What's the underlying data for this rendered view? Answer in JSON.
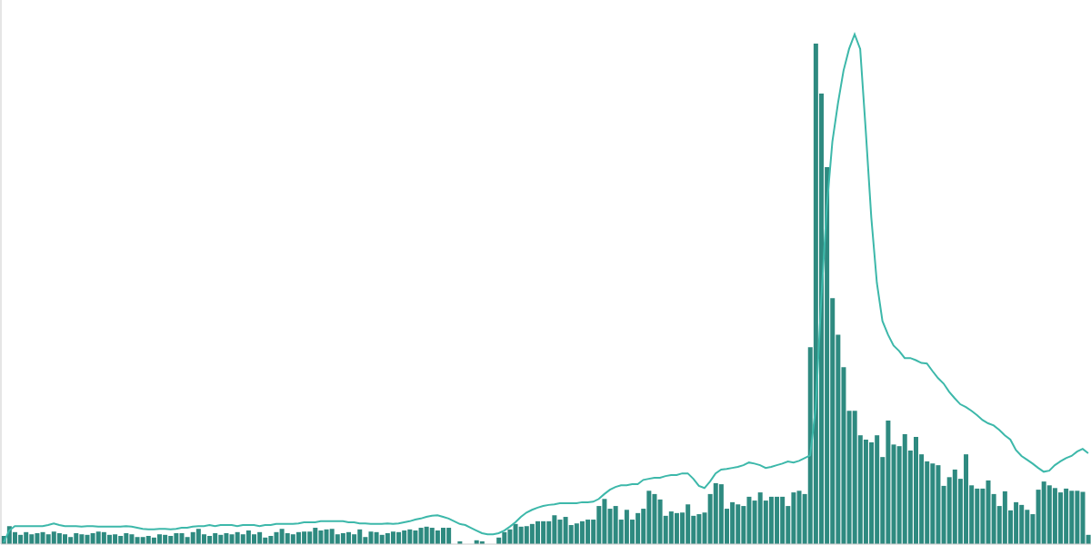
{
  "chart_data": {
    "type": "bar",
    "categories": [
      null,
      null,
      null,
      null,
      null,
      null,
      null,
      null,
      null,
      null,
      null,
      null,
      null,
      null,
      null,
      null,
      null,
      null,
      null,
      null,
      null,
      null,
      null,
      null,
      null,
      null,
      null,
      null,
      null,
      null,
      null,
      null,
      null,
      null,
      null,
      null,
      null,
      null,
      null,
      null,
      null,
      null,
      null,
      null,
      null,
      null,
      null,
      null,
      null,
      null,
      null,
      null,
      null,
      null,
      null,
      null,
      null,
      null,
      null,
      null,
      null,
      null,
      null,
      null,
      null,
      null,
      null,
      null,
      null,
      null,
      null,
      null,
      null,
      null,
      null,
      null,
      null,
      null,
      null,
      null,
      null,
      null,
      null,
      null,
      null,
      null,
      null,
      null,
      null,
      null,
      null,
      null,
      null,
      null,
      null,
      null,
      null,
      null,
      null,
      null,
      null,
      null,
      null,
      null,
      null,
      null,
      null,
      null,
      null,
      null,
      null,
      null,
      null,
      null,
      null,
      null,
      null,
      null,
      null,
      null,
      null,
      null,
      null,
      null,
      null,
      null,
      null,
      null,
      null,
      null,
      null,
      null,
      null,
      null,
      null,
      null,
      null,
      null,
      null,
      null,
      null,
      null,
      null,
      null,
      null,
      null,
      null,
      null,
      null,
      null,
      null,
      null,
      null,
      null,
      null,
      null,
      null,
      null,
      null,
      null,
      null,
      null,
      null,
      null,
      null,
      null,
      null,
      null,
      null,
      null,
      null,
      null,
      null,
      null,
      null,
      null,
      null,
      null,
      null,
      null,
      null,
      null,
      null,
      null,
      null,
      null,
      null,
      null,
      null,
      null,
      null,
      null,
      null,
      null,
      null,
      null
    ],
    "series": [
      {
        "type": "bar",
        "color": "#2e8a80",
        "values": [
          1.5,
          3.3,
          2.2,
          1.7,
          2.2,
          1.8,
          2.0,
          2.2,
          1.8,
          2.3,
          2.0,
          1.8,
          1.3,
          2.0,
          1.8,
          1.7,
          2.0,
          2.3,
          2.2,
          1.7,
          1.8,
          1.5,
          2.0,
          1.8,
          1.3,
          1.3,
          1.5,
          1.2,
          1.8,
          1.7,
          1.5,
          2.0,
          2.0,
          1.3,
          2.2,
          2.8,
          1.8,
          1.5,
          2.0,
          1.7,
          2.0,
          1.8,
          2.2,
          1.8,
          2.5,
          1.8,
          2.2,
          1.2,
          1.5,
          2.2,
          2.8,
          2.0,
          1.8,
          2.2,
          2.3,
          2.3,
          3.0,
          2.5,
          2.7,
          2.8,
          1.8,
          2.0,
          2.2,
          1.8,
          2.7,
          1.3,
          2.3,
          2.2,
          1.7,
          2.0,
          2.3,
          2.2,
          2.5,
          2.7,
          2.5,
          3.0,
          3.2,
          3.0,
          2.5,
          3.0,
          3.0,
          0,
          0.5,
          0,
          0,
          0.7,
          0.5,
          0,
          0,
          1.2,
          2.2,
          2.7,
          3.7,
          3.2,
          3.3,
          3.7,
          4.2,
          4.2,
          4.2,
          5.3,
          4.5,
          5.0,
          3.5,
          3.8,
          4.2,
          4.5,
          4.5,
          7.0,
          8.3,
          6.5,
          7.0,
          4.5,
          6.3,
          4.5,
          5.7,
          6.5,
          9.8,
          9.2,
          8.2,
          5.2,
          6.0,
          5.7,
          5.8,
          7.3,
          5.2,
          5.5,
          5.8,
          9.2,
          11.2,
          11.0,
          6.5,
          7.7,
          7.3,
          7.0,
          8.7,
          8.0,
          9.5,
          8.0,
          8.7,
          8.7,
          8.7,
          7.0,
          9.5,
          9.8,
          9.2,
          36.2,
          92.0,
          82.8,
          69.3,
          45.2,
          38.5,
          32.5,
          24.5,
          24.5,
          20.0,
          19.2,
          18.7,
          20.0,
          16.0,
          22.7,
          18.3,
          18.0,
          20.2,
          17.2,
          19.7,
          16.5,
          15.2,
          14.8,
          14.5,
          10.7,
          12.3,
          13.7,
          12.0,
          16.5,
          10.8,
          10.2,
          10.2,
          11.7,
          9.2,
          7.0,
          9.7,
          6.2,
          7.7,
          7.2,
          6.3,
          5.5,
          10.0,
          11.5,
          10.8,
          10.3,
          9.5,
          10.2,
          9.8,
          9.8,
          9.6,
          1.7
        ]
      },
      {
        "type": "line",
        "color": "#3db8aa",
        "values": [
          0.3,
          2.5,
          3.3,
          3.3,
          3.3,
          3.3,
          3.3,
          3.3,
          3.5,
          3.8,
          3.5,
          3.3,
          3.3,
          3.3,
          3.2,
          3.3,
          3.3,
          3.2,
          3.2,
          3.2,
          3.2,
          3.2,
          3.3,
          3.2,
          3.0,
          2.8,
          2.7,
          2.7,
          2.8,
          2.8,
          2.7,
          2.8,
          3.0,
          3.0,
          3.2,
          3.3,
          3.3,
          3.5,
          3.3,
          3.5,
          3.5,
          3.5,
          3.3,
          3.5,
          3.5,
          3.5,
          3.3,
          3.5,
          3.5,
          3.7,
          3.7,
          3.7,
          3.7,
          3.8,
          4.0,
          4.0,
          4.0,
          4.2,
          4.2,
          4.2,
          4.2,
          4.2,
          4.0,
          4.0,
          3.8,
          3.8,
          3.7,
          3.7,
          3.7,
          3.8,
          3.7,
          3.8,
          4.0,
          4.2,
          4.5,
          4.7,
          5.0,
          5.2,
          5.3,
          5.0,
          4.7,
          4.2,
          3.7,
          3.5,
          3.0,
          2.5,
          2.0,
          1.8,
          1.8,
          2.0,
          2.5,
          3.2,
          4.0,
          5.0,
          5.8,
          6.3,
          6.7,
          7.0,
          7.2,
          7.3,
          7.5,
          7.5,
          7.5,
          7.5,
          7.7,
          7.7,
          7.8,
          8.3,
          9.2,
          10.0,
          10.5,
          10.8,
          10.8,
          11.0,
          11.0,
          11.8,
          12.0,
          12.2,
          12.2,
          12.5,
          12.7,
          12.7,
          13.0,
          13.0,
          12.0,
          10.7,
          10.3,
          11.5,
          13.0,
          13.7,
          13.8,
          14.0,
          14.2,
          14.5,
          15.0,
          14.8,
          14.5,
          14.0,
          14.2,
          14.5,
          14.8,
          15.2,
          15.0,
          15.3,
          15.8,
          16.3,
          25.0,
          45.0,
          62.0,
          74.0,
          81.0,
          87.0,
          91.0,
          93.7,
          91.0,
          76.0,
          60.0,
          48.0,
          41.0,
          38.5,
          36.5,
          35.5,
          34.2,
          34.2,
          33.8,
          33.3,
          33.2,
          31.8,
          30.5,
          29.5,
          28.0,
          26.8,
          25.7,
          25.2,
          24.5,
          23.7,
          22.8,
          22.2,
          21.8,
          21.0,
          20.0,
          19.2,
          17.3,
          16.2,
          15.5,
          14.8,
          14.0,
          13.3,
          13.5,
          14.5,
          15.2,
          15.8,
          16.2,
          17.0,
          17.5,
          16.7
        ]
      }
    ],
    "ylim": [
      0,
      100
    ],
    "grid": false,
    "tick_labels": false
  }
}
